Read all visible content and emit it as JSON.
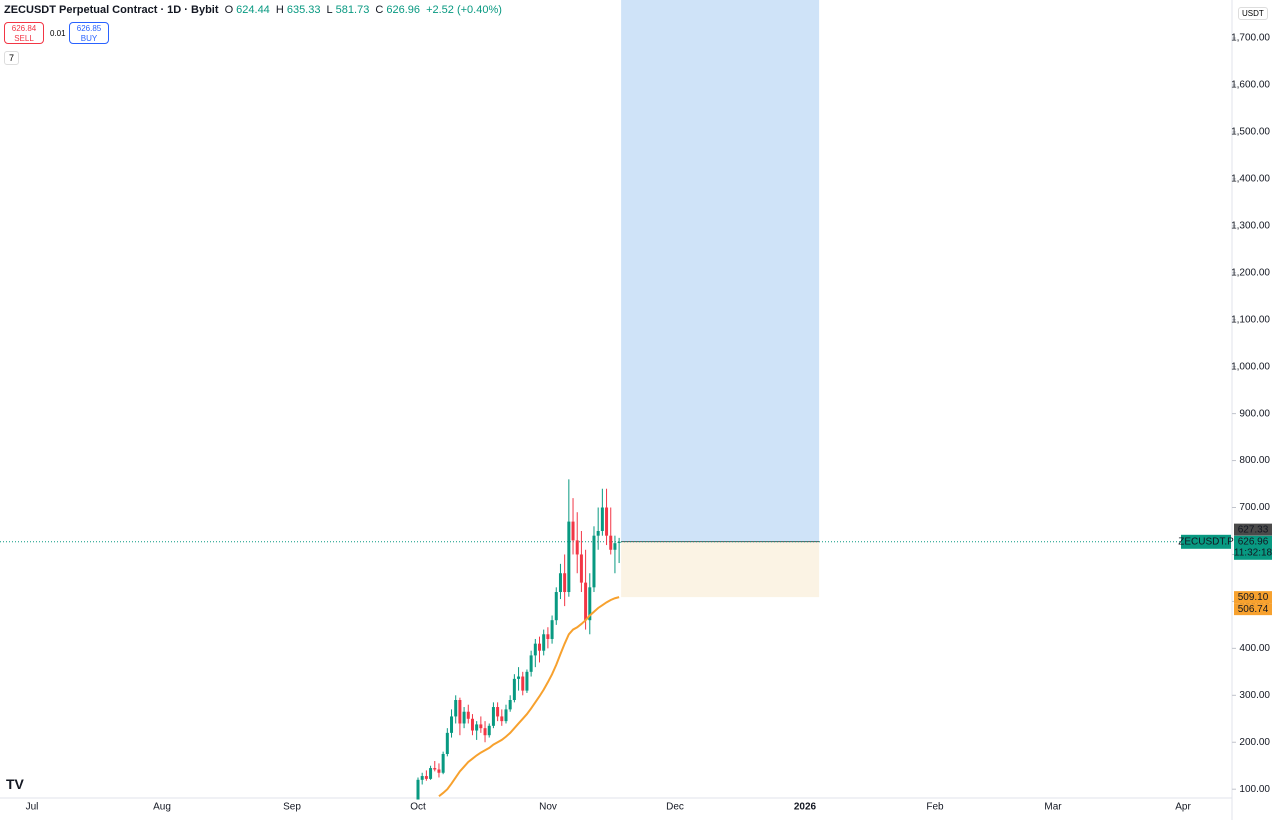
{
  "header": {
    "symbol": "ZECUSDT Perpetual Contract · 1D · Bybit",
    "o_label": "O",
    "o": "624.44",
    "h_label": "H",
    "h": "635.33",
    "l_label": "L",
    "l": "581.73",
    "c_label": "C",
    "c": "626.96",
    "change": "+2.52 (+0.40%)",
    "sell_price": "626.84",
    "sell": "SELL",
    "spread": "0.01",
    "buy_price": "626.85",
    "buy": "BUY",
    "indicators": "7",
    "currency": "USDT"
  },
  "chart_data": {
    "type": "candlestick",
    "categories": [
      "Jul",
      "Aug",
      "Sep",
      "Oct",
      "Nov",
      "Dec",
      "2026",
      "Feb",
      "Mar",
      "Apr"
    ],
    "open": [
      78,
      120,
      128,
      122,
      145,
      142,
      135,
      175,
      220,
      255,
      290,
      240,
      265,
      250,
      225,
      238,
      230,
      215,
      235,
      275,
      255,
      245,
      270,
      290,
      335,
      340,
      310,
      350,
      385,
      410,
      395,
      430,
      420,
      460,
      520,
      560,
      520,
      670,
      630,
      600,
      540,
      460,
      530,
      640,
      650,
      700,
      640,
      610,
      624.44
    ],
    "high": [
      125,
      135,
      140,
      150,
      160,
      155,
      180,
      230,
      270,
      300,
      295,
      275,
      280,
      260,
      245,
      255,
      245,
      240,
      285,
      285,
      270,
      280,
      300,
      345,
      360,
      350,
      355,
      395,
      420,
      425,
      440,
      445,
      470,
      530,
      580,
      600,
      760,
      720,
      690,
      650,
      610,
      560,
      660,
      700,
      740,
      740,
      700,
      640,
      635.33
    ],
    "low": [
      78,
      110,
      118,
      120,
      138,
      125,
      132,
      170,
      210,
      240,
      215,
      230,
      240,
      215,
      205,
      220,
      200,
      210,
      230,
      245,
      235,
      240,
      265,
      285,
      310,
      300,
      305,
      340,
      360,
      370,
      385,
      400,
      410,
      450,
      505,
      490,
      510,
      600,
      560,
      520,
      440,
      430,
      520,
      610,
      640,
      620,
      600,
      560,
      581.73
    ],
    "close": [
      120,
      128,
      122,
      145,
      142,
      135,
      175,
      220,
      255,
      290,
      240,
      265,
      250,
      225,
      238,
      230,
      215,
      235,
      275,
      255,
      245,
      270,
      290,
      335,
      340,
      310,
      350,
      385,
      410,
      395,
      430,
      420,
      460,
      520,
      560,
      520,
      670,
      630,
      600,
      540,
      460,
      530,
      640,
      650,
      700,
      640,
      610,
      624,
      626.96
    ],
    "ma": [
      null,
      null,
      null,
      null,
      null,
      85,
      92,
      100,
      112,
      125,
      138,
      148,
      158,
      165,
      172,
      178,
      183,
      188,
      195,
      200,
      205,
      212,
      220,
      230,
      240,
      250,
      260,
      272,
      285,
      298,
      312,
      328,
      345,
      365,
      388,
      410,
      430,
      440,
      445,
      452,
      460,
      470,
      478,
      486,
      492,
      498,
      503,
      506.74,
      509.1
    ],
    "ylim": [
      77,
      1781
    ],
    "yticks": [
      {
        "value": 100,
        "label": "100.00"
      },
      {
        "value": 200,
        "label": "200.00"
      },
      {
        "value": 300,
        "label": "300.00"
      },
      {
        "value": 400,
        "label": "400.00"
      },
      {
        "value": 500,
        "label": "500.00"
      },
      {
        "value": 600,
        "label": "600.00"
      },
      {
        "value": 700,
        "label": "700.00"
      },
      {
        "value": 800,
        "label": "800.00"
      },
      {
        "value": 900,
        "label": "900.00"
      },
      {
        "value": 1000,
        "label": "1,000.00"
      },
      {
        "value": 1100,
        "label": "1,100.00"
      },
      {
        "value": 1200,
        "label": "1,200.00"
      },
      {
        "value": 1300,
        "label": "1,300.00"
      },
      {
        "value": 1400,
        "label": "1,400.00"
      },
      {
        "value": 1500,
        "label": "1,500.00"
      },
      {
        "value": 1600,
        "label": "1,600.00"
      },
      {
        "value": 1700,
        "label": "1,700.00"
      }
    ],
    "up_color": "#089981",
    "down_color": "#f23645",
    "ma_color": "#f7a12e",
    "position": {
      "entry": 627.33,
      "stop": 509.1
    },
    "last_price": {
      "value": 626.96,
      "symbol": "ZECUSDT.P",
      "countdown": "11:32:18"
    },
    "ma_labels": [
      {
        "value": 509.1,
        "label": "509.10"
      },
      {
        "value": 506.74,
        "label": "506.74"
      }
    ]
  }
}
